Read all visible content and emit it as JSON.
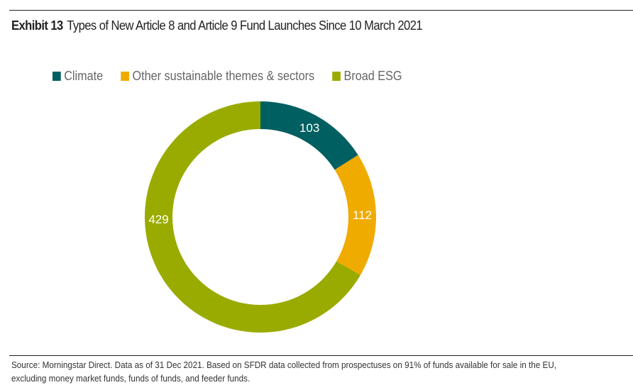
{
  "exhibit_label": "Exhibit 13",
  "chart_data": {
    "type": "pie",
    "variant": "donut",
    "title": "Types of New Article 8 and Article 9 Fund Launches Since 10 March 2021",
    "legend_position": "top",
    "categories": [
      "Climate",
      "Other sustainable themes & sectors",
      "Broad ESG"
    ],
    "values": [
      103,
      112,
      429
    ],
    "colors": [
      "#005f61",
      "#f0ab00",
      "#9aab00"
    ]
  },
  "source": "Source: Morningstar Direct. Data as of 31 Dec 2021. Based on SFDR data collected from prospectuses on 91% of funds available for sale in the EU, excluding money market funds, funds of funds, and feeder funds."
}
